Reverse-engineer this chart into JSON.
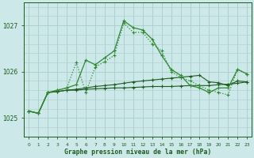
{
  "bg_color": "#cce8e8",
  "grid_color": "#aacccc",
  "line_dark": "#1a5c1a",
  "line_light": "#2e8b2e",
  "xlabel": "Graphe pression niveau de la mer (hPa)",
  "yticks": [
    1025,
    1026,
    1027
  ],
  "ylim": [
    1024.6,
    1027.5
  ],
  "xlim": [
    -0.5,
    23.5
  ],
  "xticks": [
    0,
    1,
    2,
    3,
    4,
    5,
    6,
    7,
    8,
    9,
    10,
    11,
    12,
    13,
    14,
    15,
    16,
    17,
    18,
    19,
    20,
    21,
    22,
    23
  ],
  "line1_y": [
    1025.15,
    1025.1,
    1025.55,
    1025.57,
    1025.6,
    1025.6,
    1025.62,
    1025.63,
    1025.64,
    1025.65,
    1025.65,
    1025.66,
    1025.67,
    1025.68,
    1025.68,
    1025.68,
    1025.69,
    1025.7,
    1025.7,
    1025.7,
    1025.72,
    1025.73,
    1025.75,
    1025.78
  ],
  "line2_y": [
    1025.15,
    1025.1,
    1025.55,
    1025.57,
    1025.6,
    1025.62,
    1025.65,
    1025.68,
    1025.7,
    1025.72,
    1025.75,
    1025.78,
    1025.8,
    1025.82,
    1025.84,
    1025.86,
    1025.88,
    1025.9,
    1025.92,
    1025.78,
    1025.76,
    1025.7,
    1025.8,
    1025.78
  ],
  "line3_y": [
    1025.15,
    1025.1,
    1025.55,
    1025.6,
    1025.65,
    1026.2,
    1025.55,
    1026.1,
    1026.22,
    1026.35,
    1027.05,
    1026.85,
    1026.85,
    1026.6,
    1026.45,
    1026.0,
    1025.88,
    1025.8,
    1025.7,
    1025.6,
    1025.55,
    1025.5,
    1026.05,
    1025.95
  ],
  "line4_y": [
    1025.15,
    1025.1,
    1025.55,
    1025.6,
    1025.65,
    1025.72,
    1026.25,
    1026.15,
    1026.3,
    1026.45,
    1027.1,
    1026.95,
    1026.9,
    1026.7,
    1026.35,
    1026.05,
    1025.92,
    1025.7,
    1025.65,
    1025.55,
    1025.65,
    1025.65,
    1026.05,
    1025.95
  ]
}
